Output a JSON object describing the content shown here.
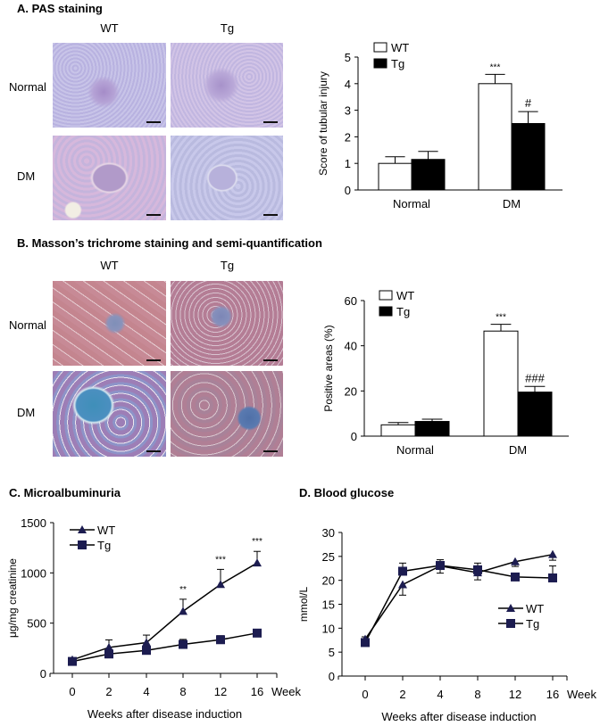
{
  "panels": {
    "a": {
      "title": "A. PAS staining",
      "col_labels": [
        "WT",
        "Tg"
      ],
      "row_labels": [
        "Normal",
        "DM"
      ]
    },
    "b": {
      "title": "B. Masson’s trichrome staining and semi-quantification",
      "col_labels": [
        "WT",
        "Tg"
      ],
      "row_labels": [
        "Normal",
        "DM"
      ]
    },
    "c": {
      "title": "C. Microalbuminuria"
    },
    "d": {
      "title": "D. Blood glucose"
    }
  },
  "chart_data": [
    {
      "id": "a",
      "type": "bar",
      "title": "",
      "categories": [
        "Normal",
        "DM"
      ],
      "series": [
        {
          "name": "WT",
          "values": [
            1.0,
            4.0
          ],
          "errors": [
            0.25,
            0.35
          ],
          "fill": "#ffffff"
        },
        {
          "name": "Tg",
          "values": [
            1.15,
            2.5
          ],
          "errors": [
            0.3,
            0.45
          ],
          "fill": "#000000"
        }
      ],
      "annotations": [
        {
          "category": "DM",
          "series": "WT",
          "text": "***"
        },
        {
          "category": "DM",
          "series": "Tg",
          "text": "#"
        }
      ],
      "xlabel": "",
      "ylabel": "Score of tubular injury",
      "ylim": [
        0,
        5
      ],
      "yticks": [
        0,
        1,
        2,
        3,
        4,
        5
      ],
      "legend_position": "top-left",
      "grid": false
    },
    {
      "id": "b",
      "type": "bar",
      "title": "",
      "categories": [
        "Normal",
        "DM"
      ],
      "series": [
        {
          "name": "WT",
          "values": [
            5.0,
            46.5
          ],
          "errors": [
            1.0,
            3.0
          ],
          "fill": "#ffffff"
        },
        {
          "name": "Tg",
          "values": [
            6.5,
            19.5
          ],
          "errors": [
            1.0,
            2.5
          ],
          "fill": "#000000"
        }
      ],
      "annotations": [
        {
          "category": "DM",
          "series": "WT",
          "text": "***"
        },
        {
          "category": "DM",
          "series": "Tg",
          "text": "###"
        }
      ],
      "xlabel": "",
      "ylabel": "Positive areas (%)",
      "ylim": [
        0,
        60
      ],
      "yticks": [
        0,
        20,
        40,
        60
      ],
      "legend_position": "top-left",
      "grid": false
    },
    {
      "id": "c",
      "type": "line",
      "title": "Microalbuminuria",
      "x": [
        "0",
        "2",
        "4",
        "8",
        "12",
        "16"
      ],
      "x_unit": "Week",
      "series": [
        {
          "name": "WT",
          "marker": "triangle",
          "values": [
            135,
            258,
            306,
            618,
            885,
            1099
          ],
          "errors": [
            20,
            75,
            75,
            120,
            150,
            115
          ]
        },
        {
          "name": "Tg",
          "marker": "square",
          "values": [
            119,
            193,
            229,
            288,
            335,
            401
          ],
          "errors": [
            15,
            20,
            20,
            50,
            40,
            25
          ]
        }
      ],
      "annotations": [
        {
          "x": "8",
          "text": "**"
        },
        {
          "x": "12",
          "text": "***"
        },
        {
          "x": "16",
          "text": "***"
        }
      ],
      "xlabel": "Weeks after disease induction",
      "ylabel": "μg/mg creatinine",
      "ylim": [
        0,
        1500
      ],
      "yticks": [
        0,
        500,
        1000,
        1500
      ],
      "legend_position": "top-left",
      "grid": false
    },
    {
      "id": "d",
      "type": "line",
      "title": "Blood glucose",
      "x": [
        "0",
        "2",
        "4",
        "8",
        "12",
        "16"
      ],
      "x_unit": "Week",
      "series": [
        {
          "name": "WT",
          "marker": "triangle",
          "values": [
            7.7,
            19.1,
            23.0,
            21.6,
            23.9,
            25.4
          ],
          "errors": [
            0.5,
            2.2,
            1.5,
            1.5,
            1.0,
            1.2
          ]
        },
        {
          "name": "Tg",
          "marker": "square",
          "values": [
            7.0,
            21.9,
            23.1,
            22.2,
            20.7,
            20.5
          ],
          "errors": [
            0.4,
            1.7,
            1.2,
            1.4,
            0.4,
            2.5
          ]
        }
      ],
      "annotations": [],
      "xlabel": "Weeks after disease induction",
      "ylabel": "mmol/L",
      "ylim": [
        0,
        30
      ],
      "yticks": [
        0,
        5,
        10,
        15,
        20,
        25,
        30
      ],
      "legend_position": "center-right",
      "grid": false
    }
  ],
  "colors": {
    "axis": "#000000",
    "marker": "#1c1c50",
    "pas_tint": "#c7c3e6",
    "masson_tint": "#b6879e"
  }
}
